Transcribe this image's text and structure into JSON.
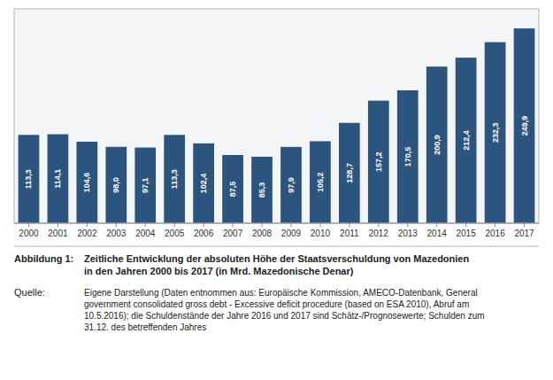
{
  "chart_data": {
    "type": "bar",
    "title": "Zeitliche Entwicklung der absoluten Höhe der Staatsverschuldung von Mazedonien\nin den Jahren 2000 bis 2017 (in Mrd. Mazedonische Denar)",
    "annotations": [
      "Abbildung 1:",
      "Quelle:",
      "Eigene Darstellung (Daten entnommen aus: Europäische Kommission, AMECO-Datenbank, General\ngovernment consolidated gross debt - Excessive deficit procedure (based on ESA 2010), Abruf am\n10.5.2016); die Schuldenstände der Jahre 2016 und 2017 sind Schätz-/Prognosewerte; Schulden zum\n31.12. des betreffenden Jahres"
    ],
    "categories": [
      "2000",
      "2001",
      "2002",
      "2003",
      "2004",
      "2005",
      "2006",
      "2007",
      "2008",
      "2009",
      "2010",
      "2011",
      "2012",
      "2013",
      "2014",
      "2015",
      "2016",
      "2017"
    ],
    "values": [
      113.3,
      114.1,
      104.6,
      98.0,
      97.1,
      113.3,
      102.4,
      87.5,
      85.3,
      97.9,
      105.2,
      128.7,
      157.2,
      170.5,
      200.9,
      212.4,
      232.3,
      249.9
    ],
    "value_labels": [
      "113,3",
      "114,1",
      "104,6",
      "98,0",
      "97,1",
      "113,3",
      "102,4",
      "87,5",
      "85,3",
      "97,9",
      "105,2",
      "128,7",
      "157,2",
      "170,5",
      "200,9",
      "212,4",
      "232,3",
      "249,9"
    ],
    "color": "#2B547E",
    "ylim": [
      0,
      275
    ],
    "data_labels": true,
    "tick_labels": "x",
    "grid": false
  }
}
